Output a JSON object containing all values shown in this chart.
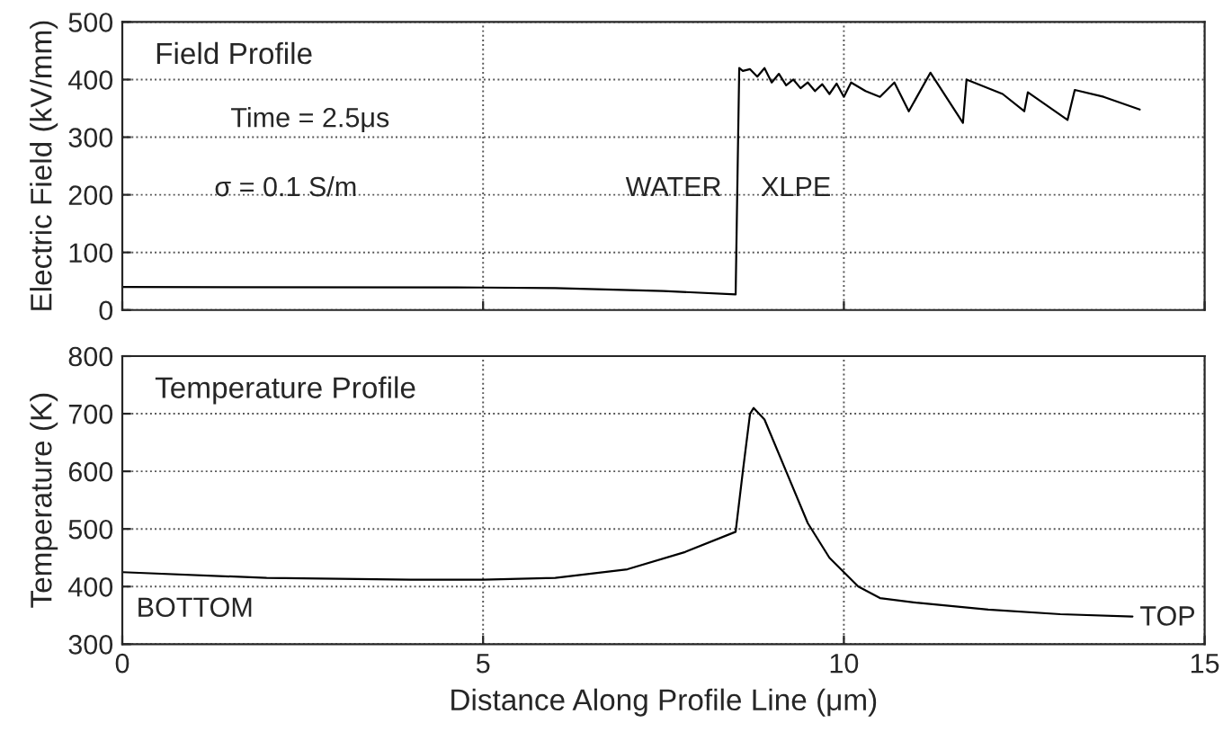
{
  "chart_data": [
    {
      "type": "line",
      "title": "Field Profile",
      "ylabel": "Electric Field (kV/mm)",
      "xlim": [
        0,
        15
      ],
      "xticks": [
        0,
        5,
        10,
        15
      ],
      "ylim": [
        0,
        500
      ],
      "yticks": [
        0,
        100,
        200,
        300,
        400,
        500
      ],
      "grid": true,
      "tick_labels": "y",
      "annotations": [
        "Time = 2.5μs",
        "σ = 0.1 S/m",
        "WATER",
        "XLPE"
      ],
      "series": [
        {
          "color": "#000000",
          "x": [
            0,
            5,
            6,
            7.5,
            8.5,
            8.55,
            8.6,
            8.7,
            8.8,
            8.9,
            9.0,
            9.1,
            9.2,
            9.3,
            9.4,
            9.5,
            9.6,
            9.7,
            9.8,
            9.9,
            10.0,
            10.1,
            10.3,
            10.5,
            10.7,
            10.9,
            11.2,
            11.65,
            11.7,
            12.2,
            12.5,
            12.55,
            13.1,
            13.2,
            13.6,
            14.1
          ],
          "values": [
            40,
            39,
            38,
            33,
            27,
            420,
            415,
            418,
            405,
            420,
            395,
            410,
            390,
            400,
            385,
            395,
            380,
            392,
            375,
            393,
            370,
            395,
            380,
            370,
            395,
            345,
            412,
            325,
            400,
            375,
            345,
            378,
            330,
            382,
            370,
            348
          ]
        }
      ]
    },
    {
      "type": "line",
      "title": "Temperature Profile",
      "xlabel": "Distance Along Profile Line (μm)",
      "ylabel": "Temperature (K)",
      "xlim": [
        0,
        15
      ],
      "xticks": [
        0,
        5,
        10,
        15
      ],
      "ylim": [
        300,
        800
      ],
      "yticks": [
        300,
        400,
        500,
        600,
        700,
        800
      ],
      "grid": true,
      "annotations": [
        "BOTTOM",
        {
          "text": "TOP",
          "x": 14.1,
          "y": 345
        }
      ],
      "series": [
        {
          "color": "#000000",
          "x": [
            0,
            2,
            4,
            5,
            6,
            7,
            7.8,
            8.5,
            8.6,
            8.7,
            8.75,
            8.9,
            9.2,
            9.5,
            9.8,
            10.2,
            10.5,
            11,
            12,
            13,
            14
          ],
          "values": [
            425,
            415,
            412,
            412,
            415,
            430,
            460,
            495,
            600,
            700,
            710,
            690,
            600,
            510,
            450,
            400,
            380,
            372,
            360,
            352,
            348
          ]
        }
      ]
    }
  ]
}
